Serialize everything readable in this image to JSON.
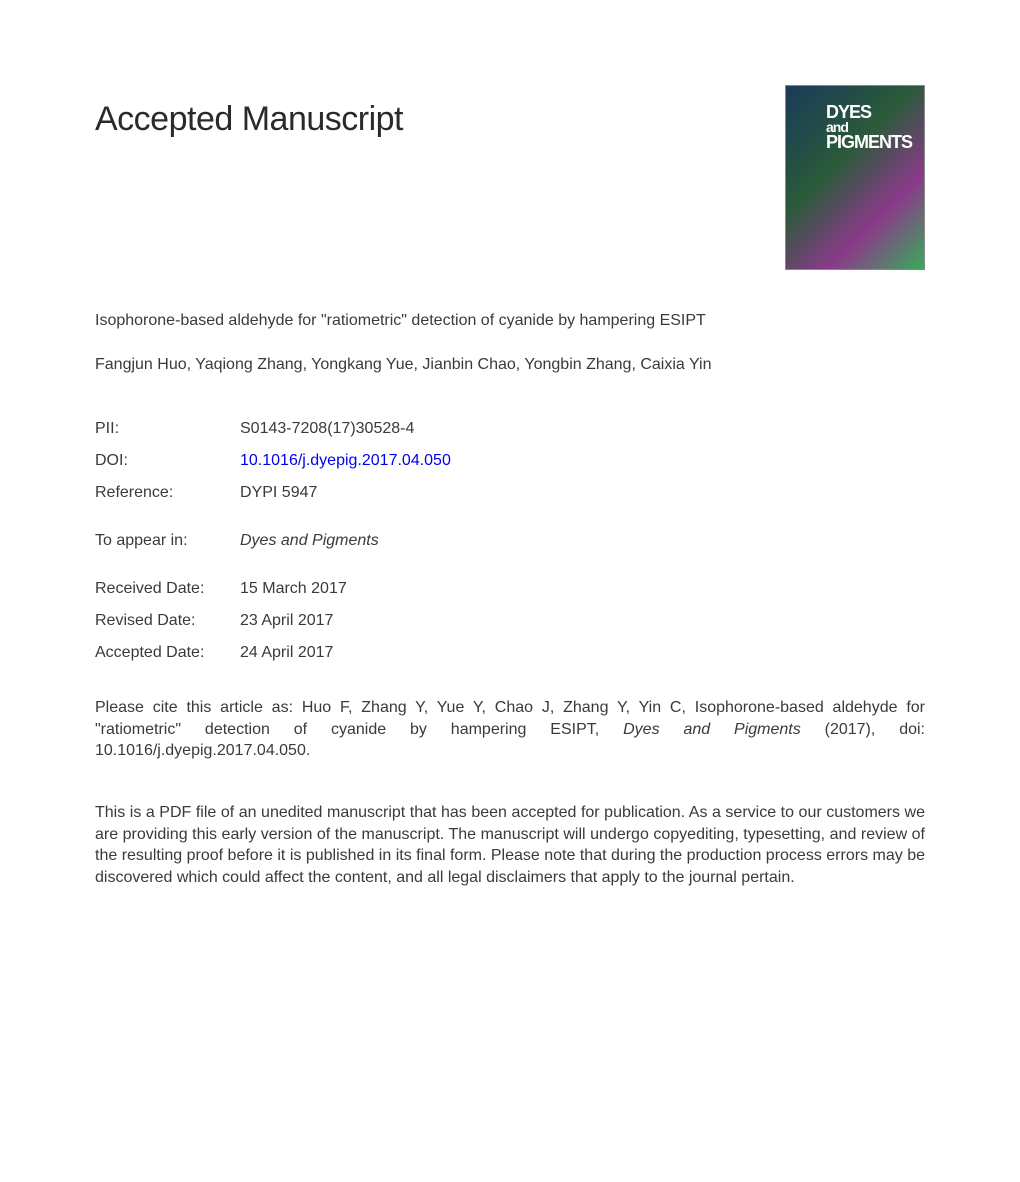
{
  "heading": "Accepted Manuscript",
  "cover": {
    "line1": "DYES",
    "line2": "and",
    "line3": "PIGMENTS"
  },
  "article_title": "Isophorone-based aldehyde for \"ratiometric\" detection of cyanide by hampering ESIPT",
  "authors": "Fangjun Huo, Yaqiong Zhang, Yongkang Yue, Jianbin Chao, Yongbin Zhang, Caixia Yin",
  "metadata": {
    "pii_label": "PII:",
    "pii_value": "S0143-7208(17)30528-4",
    "doi_label": "DOI:",
    "doi_value": "10.1016/j.dyepig.2017.04.050",
    "reference_label": "Reference:",
    "reference_value": "DYPI 5947",
    "appear_label": "To appear in:",
    "appear_value": "Dyes and Pigments",
    "received_label": "Received Date:",
    "received_value": "15 March 2017",
    "revised_label": "Revised Date:",
    "revised_value": "23 April 2017",
    "accepted_label": "Accepted Date:",
    "accepted_value": "24 April 2017"
  },
  "citation_prefix": "Please cite this article as: Huo F, Zhang Y, Yue Y, Chao J, Zhang Y, Yin C, Isophorone-based aldehyde for \"ratiometric\" detection of cyanide by hampering ESIPT, ",
  "citation_journal": "Dyes and Pigments",
  "citation_suffix": " (2017), doi: 10.1016/j.dyepig.2017.04.050.",
  "disclaimer": "This is a PDF file of an unedited manuscript that has been accepted for publication. As a service to our customers we are providing this early version of the manuscript. The manuscript will undergo copyediting, typesetting, and review of the resulting proof before it is published in its final form. Please note that during the production process errors may be discovered which could affect the content, and all legal disclaimers that apply to the journal pertain.",
  "colors": {
    "text": "#3a3a3a",
    "link": "#0000ee",
    "background": "#ffffff"
  },
  "typography": {
    "heading_fontsize": 34,
    "body_fontsize": 16,
    "font_family": "Arial, Helvetica, sans-serif"
  }
}
